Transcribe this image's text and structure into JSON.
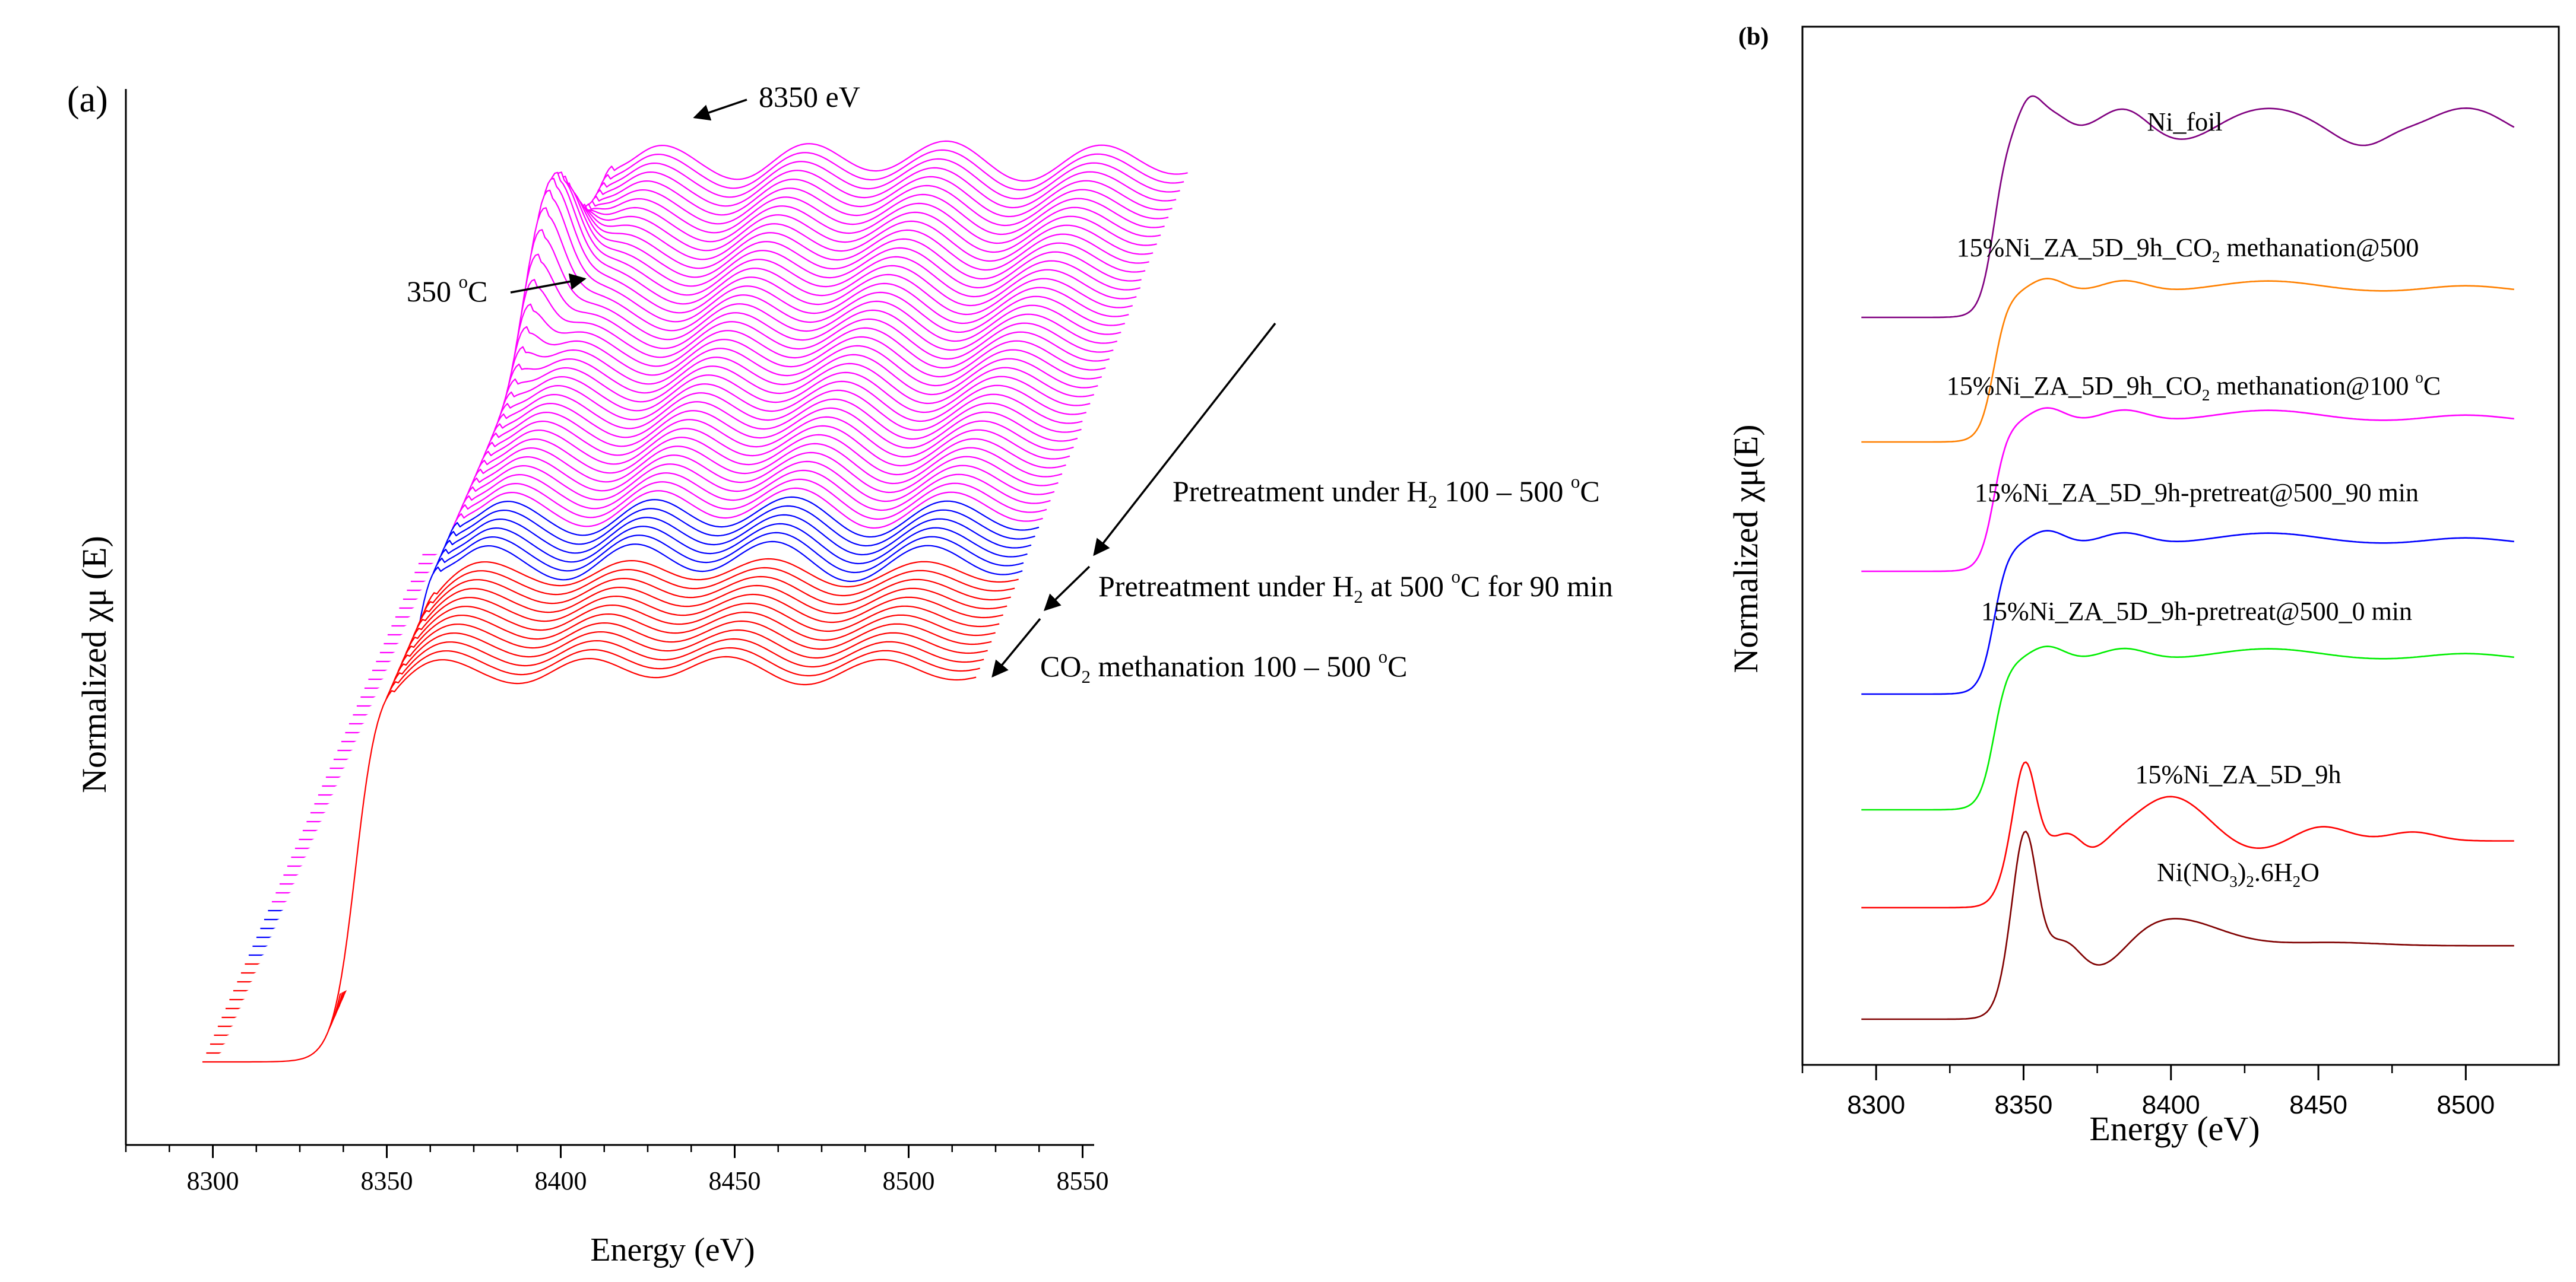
{
  "chart_data": [
    {
      "panel": "(a)",
      "type": "line",
      "style": "stacked waterfall of XANES spectra",
      "xlabel": "Energy (eV)",
      "ylabel": "Normalized χμ (E)",
      "xlim": [
        8275,
        8550
      ],
      "xticks": [
        8300,
        8350,
        8400,
        8450,
        8500,
        8550
      ],
      "groups": [
        {
          "name": "CO2 methanation 100 – 500 °C",
          "color": "#ff0000",
          "count": 12,
          "label_parts": [
            "CO",
            "2",
            " methanation 100 – 500 ",
            "o",
            "C"
          ]
        },
        {
          "name": "Pretreatment under H2 at 500 °C for 90 min",
          "color": "#0000ff",
          "count": 6,
          "label_parts": [
            "Pretreatment under H",
            "2",
            " at 500 ",
            "o",
            "C for 90 min"
          ]
        },
        {
          "name": "Pretreatment under H2 100 – 500 °C",
          "color": "#ff00ff",
          "count": 40,
          "label_parts": [
            "Pretreatment under H",
            "2",
            " 100 – 500 ",
            "o",
            "C"
          ]
        }
      ],
      "annotations": [
        {
          "text": "8350 eV",
          "target": "white-line peak of final H2 pretreatment spectrum"
        },
        {
          "text_parts": [
            "350 ",
            "o",
            "C"
          ],
          "target": "H2 pretreatment spectrum at 350 °C"
        }
      ]
    },
    {
      "panel": "(b)",
      "type": "line",
      "xlabel": "Energy (eV)",
      "ylabel": "Normalized χμ(E)",
      "xlim": [
        8275,
        8520
      ],
      "xticks": [
        8300,
        8350,
        8400,
        8450,
        8500
      ],
      "series": [
        {
          "name": "Ni_foil",
          "color": "#800080",
          "label_parts": [
            "Ni_foil"
          ]
        },
        {
          "name": "15%Ni_ZA_5D_9h_CO2 methanation@500",
          "color": "#ff8000",
          "label_parts": [
            "15%Ni_ZA_5D_9h_CO",
            "2",
            " methanation@500"
          ]
        },
        {
          "name": "15%Ni_ZA_5D_9h_CO2 methanation@100 °C",
          "color": "#ff00ff",
          "label_parts": [
            "15%Ni_ZA_5D_9h_CO",
            "2",
            " methanation@100 ",
            "o",
            "C"
          ]
        },
        {
          "name": "15%Ni_ZA_5D_9h-pretreat@500_90 min",
          "color": "#0000ff",
          "label_parts": [
            "15%Ni_ZA_5D_9h-pretreat@500_90 min"
          ]
        },
        {
          "name": "15%Ni_ZA_5D_9h-pretreat@500_0 min",
          "color": "#00ee00",
          "label_parts": [
            "15%Ni_ZA_5D_9h-pretreat@500_0 min"
          ]
        },
        {
          "name": "15%Ni_ZA_5D_9h",
          "color": "#ff0000",
          "label_parts": [
            "15%Ni_ZA_5D_9h"
          ]
        },
        {
          "name": "Ni(NO3)2.6H2O",
          "color": "#800000",
          "label_parts": [
            "Ni(NO",
            "3",
            ")",
            "2",
            ".6H",
            "2",
            "O"
          ]
        }
      ]
    }
  ]
}
